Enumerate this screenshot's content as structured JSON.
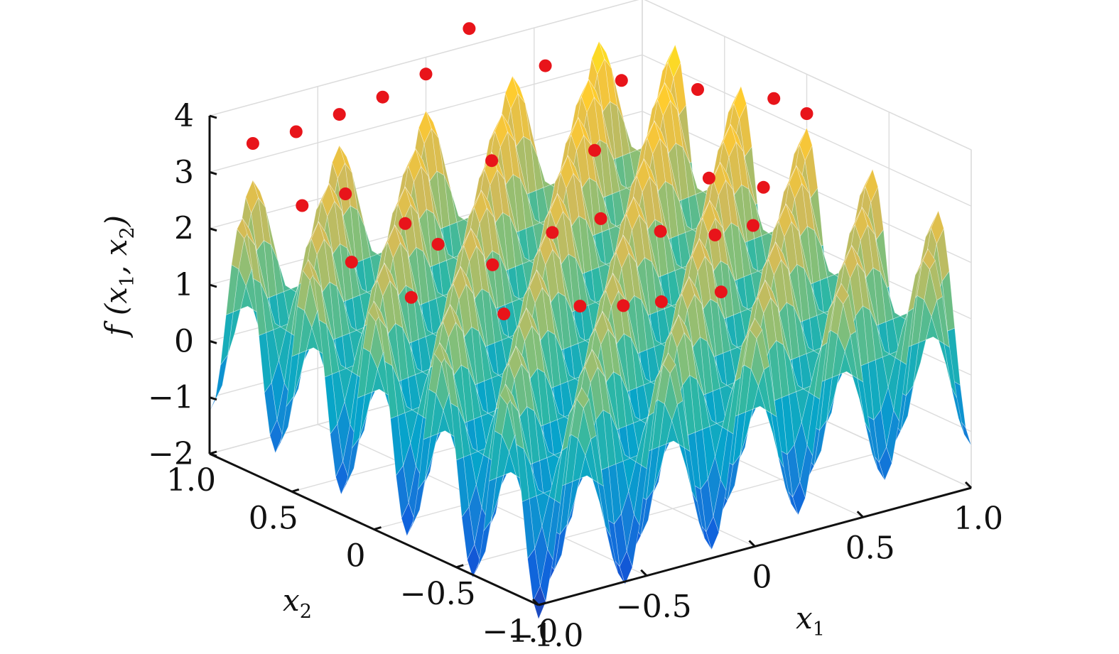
{
  "chart_data": {
    "type": "surface3d",
    "title": "",
    "xlabel": "x1",
    "ylabel": "x2",
    "zlabel": "f (x1, x2)",
    "x_var": "x",
    "x_sub": "1",
    "y_var": "x",
    "y_sub": "2",
    "z_label_prefix": "f (",
    "z_label_sep": ", ",
    "z_label_suffix": ")",
    "xlim": [
      -1.0,
      1.0
    ],
    "ylim": [
      -1.0,
      1.0
    ],
    "zlim": [
      -2,
      4
    ],
    "x_ticks": [
      "−1.0",
      "−0.5",
      "0",
      "0.5",
      "1.0"
    ],
    "x_tick_values": [
      -1.0,
      -0.5,
      0,
      0.5,
      1.0
    ],
    "y_ticks": [
      "−1.0",
      "−0.5",
      "0",
      "0.5",
      "1.0"
    ],
    "y_tick_values": [
      -1.0,
      -0.5,
      0,
      0.5,
      1.0
    ],
    "z_ticks": [
      "−2",
      "−1",
      "0",
      "1",
      "2",
      "3",
      "4"
    ],
    "z_tick_values": [
      -2,
      -1,
      0,
      1,
      2,
      3,
      4
    ],
    "grid": true,
    "colormap": "parula",
    "colormap_stops": [
      "#352a87",
      "#0f5cdd",
      "#1481d6",
      "#06a4ca",
      "#2eb7a4",
      "#87bf77",
      "#d1bb59",
      "#fec832",
      "#f9fb0e"
    ],
    "peak_marker_color": "#e8141a",
    "peaks": [
      {
        "x1": -0.8,
        "x2": 1.0,
        "z": 3.3
      },
      {
        "x1": -0.6,
        "x2": 1.0,
        "z": 3.3
      },
      {
        "x1": -0.4,
        "x2": 1.0,
        "z": 3.4
      },
      {
        "x1": -0.2,
        "x2": 1.0,
        "z": 3.5
      },
      {
        "x1": 0.0,
        "x2": 1.0,
        "z": 3.7
      },
      {
        "x1": 0.2,
        "x2": 1.0,
        "z": 4.3
      },
      {
        "x1": 0.4,
        "x2": 0.8,
        "z": 3.7
      },
      {
        "x1": 0.6,
        "x2": 0.6,
        "z": 3.5
      },
      {
        "x1": 0.8,
        "x2": 0.4,
        "z": 3.4
      },
      {
        "x1": 1.0,
        "x2": 0.2,
        "z": 3.3
      },
      {
        "x1": 1.0,
        "x2": 0.0,
        "z": 3.3
      },
      {
        "x1": -0.8,
        "x2": 0.7,
        "z": 2.6
      },
      {
        "x1": -0.6,
        "x2": 0.7,
        "z": 2.6
      },
      {
        "x1": -0.4,
        "x2": 0.6,
        "z": 2.0
      },
      {
        "x1": 0.0,
        "x2": 0.6,
        "z": 2.7
      },
      {
        "x1": 0.4,
        "x2": 0.5,
        "z": 2.6
      },
      {
        "x1": 0.7,
        "x2": 0.2,
        "z": 2.2
      },
      {
        "x1": 0.8,
        "x2": 0.0,
        "z": 2.2
      },
      {
        "x1": -0.8,
        "x2": 0.4,
        "z": 2.0
      },
      {
        "x1": -0.4,
        "x2": 0.4,
        "z": 1.9
      },
      {
        "x1": -0.3,
        "x2": 0.2,
        "z": 1.7
      },
      {
        "x1": -0.1,
        "x2": 0.1,
        "z": 2.2
      },
      {
        "x1": 0.2,
        "x2": 0.2,
        "z": 2.0
      },
      {
        "x1": 0.4,
        "x2": 0.1,
        "z": 1.7
      },
      {
        "x1": 0.5,
        "x2": -0.1,
        "z": 1.8
      },
      {
        "x1": 0.6,
        "x2": -0.2,
        "z": 2.0
      },
      {
        "x1": -0.6,
        "x2": 0.3,
        "z": 1.3
      },
      {
        "x1": -0.4,
        "x2": 0.0,
        "z": 1.2
      },
      {
        "x1": -0.2,
        "x2": -0.2,
        "z": 1.4
      },
      {
        "x1": 0.0,
        "x2": -0.2,
        "z": 1.2
      },
      {
        "x1": 0.1,
        "x2": -0.3,
        "z": 1.3
      },
      {
        "x1": 0.3,
        "x2": -0.4,
        "z": 1.4
      }
    ]
  }
}
